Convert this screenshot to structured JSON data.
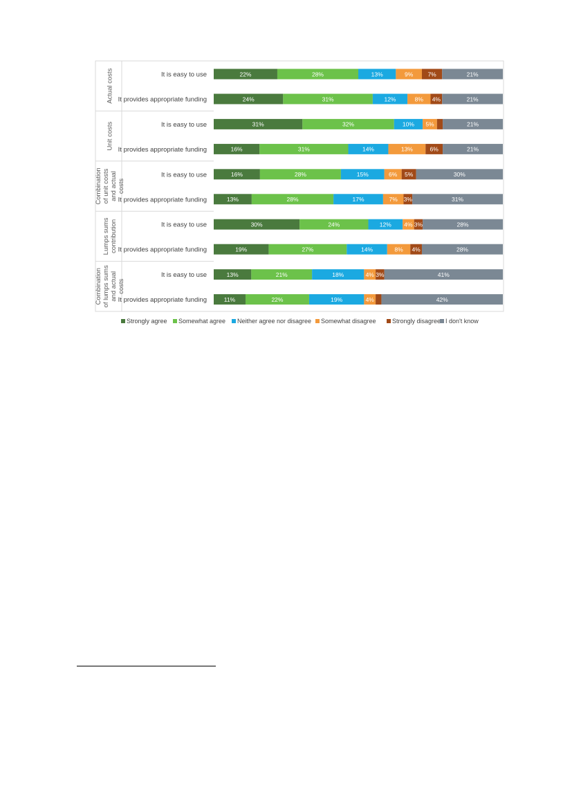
{
  "chart_data": {
    "type": "bar",
    "orientation": "horizontal",
    "stacked": true,
    "percent": true,
    "title": "",
    "xlabel": "",
    "ylabel": "",
    "xlim": [
      0,
      100
    ],
    "grid": false,
    "legend_position": "bottom",
    "series": [
      {
        "name": "Strongly agree",
        "color": "#4a7a3e"
      },
      {
        "name": "Somewhat agree",
        "color": "#6cc24a"
      },
      {
        "name": "Neither agree nor disagree",
        "color": "#1ba9e1"
      },
      {
        "name": "Somewhat disagree",
        "color": "#f39a3c"
      },
      {
        "name": "Strongly disagree",
        "color": "#a14a18"
      },
      {
        "name": "I don't know",
        "color": "#7b8894"
      }
    ],
    "groups": [
      {
        "label": "Actual costs",
        "rows": [
          {
            "label": "It is easy to use",
            "values": [
              22,
              28,
              13,
              9,
              7,
              21
            ]
          },
          {
            "label": "It provides appropriate funding",
            "values": [
              24,
              31,
              12,
              8,
              4,
              21
            ]
          }
        ]
      },
      {
        "label": "Unit costs",
        "rows": [
          {
            "label": "It is easy to use",
            "values": [
              31,
              32,
              10,
              5,
              2,
              21
            ],
            "shown_labels": [
              "31%",
              "32%",
              "10%",
              "5%",
              "",
              "21%"
            ]
          },
          {
            "label": "It provides appropriate funding",
            "values": [
              16,
              31,
              14,
              13,
              6,
              21
            ]
          }
        ]
      },
      {
        "label": "Combination of unit costs and actual costs",
        "rows": [
          {
            "label": "It is easy to use",
            "values": [
              16,
              28,
              15,
              6,
              5,
              30
            ]
          },
          {
            "label": "It provides appropriate funding",
            "values": [
              13,
              28,
              17,
              7,
              3,
              31
            ]
          }
        ]
      },
      {
        "label": "Lumps sums contribution",
        "rows": [
          {
            "label": "It is easy to use",
            "values": [
              30,
              24,
              12,
              4,
              3,
              28
            ]
          },
          {
            "label": "It provides appropriate funding",
            "values": [
              19,
              27,
              14,
              8,
              4,
              28
            ]
          }
        ]
      },
      {
        "label": "Combination of lumps sums and actual costs",
        "rows": [
          {
            "label": "It is easy to use",
            "values": [
              13,
              21,
              18,
              4,
              3,
              41
            ]
          },
          {
            "label": "It provides appropriate funding",
            "values": [
              11,
              22,
              19,
              4,
              2,
              42
            ],
            "shown_labels": [
              "11%",
              "22%",
              "19%",
              "4%",
              "",
              "42%"
            ]
          }
        ]
      }
    ]
  }
}
